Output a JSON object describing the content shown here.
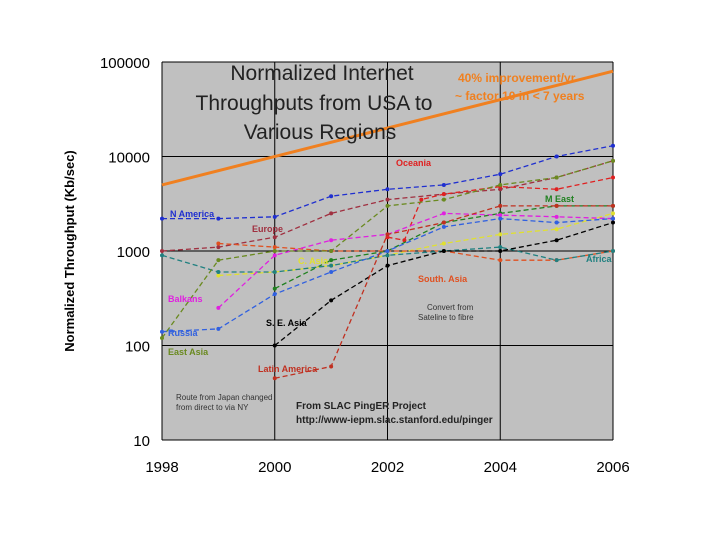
{
  "chart_data": {
    "type": "line",
    "title": [
      "Normalized Internet",
      "Throughputs from USA to",
      "Various Regions"
    ],
    "ylabel": "Normalized Throughput (Kb/sec)",
    "xlabel": "",
    "x_ticks": [
      "1998",
      "2000",
      "2002",
      "2004",
      "2006"
    ],
    "y_ticks": [
      "10",
      "100",
      "1000",
      "10000",
      "100000"
    ],
    "xlim": [
      1998,
      2006
    ],
    "ylim": [
      10,
      100000
    ],
    "y_scale": "log",
    "grid": "horizontal",
    "plot_background": "#c0c0c0",
    "series": [
      {
        "name": "N America",
        "color": "#1f2fd0",
        "x": [
          1998,
          1999,
          2000,
          2001,
          2002,
          2003,
          2004,
          2005,
          2006
        ],
        "y": [
          2200,
          2200,
          2300,
          3800,
          4500,
          5000,
          6500,
          10000,
          13000
        ]
      },
      {
        "name": "Europe",
        "color": "#a03040",
        "x": [
          1998,
          1999,
          2000,
          2001,
          2002,
          2003,
          2004,
          2005,
          2006
        ],
        "y": [
          1000,
          1100,
          1400,
          2500,
          3500,
          4000,
          4500,
          6000,
          9000
        ]
      },
      {
        "name": "Oceania",
        "color": "#e02020",
        "x": [
          2002,
          2002.3,
          2002.6,
          2003,
          2004,
          2005,
          2006
        ],
        "y": [
          1400,
          1300,
          3500,
          4000,
          4800,
          4500,
          6000
        ]
      },
      {
        "name": "M East",
        "color": "#208020",
        "x": [
          2000,
          2001,
          2002,
          2003,
          2004,
          2005,
          2006
        ],
        "y": [
          400,
          800,
          1000,
          2000,
          2500,
          3000,
          3000
        ]
      },
      {
        "name": "C. Asia",
        "color": "#e0e030",
        "x": [
          1999,
          2000,
          2001,
          2002,
          2003,
          2004,
          2005,
          2006
        ],
        "y": [
          550,
          600,
          700,
          900,
          1200,
          1500,
          1700,
          2500
        ]
      },
      {
        "name": "South. Asia",
        "color": "#e05020",
        "x": [
          1999,
          2000,
          2001,
          2002,
          2003,
          2004,
          2005,
          2006
        ],
        "y": [
          1200,
          1100,
          1000,
          1000,
          1000,
          800,
          800,
          1000
        ]
      },
      {
        "name": "Africa",
        "color": "#208080",
        "x": [
          1998,
          1999,
          2000,
          2001,
          2002,
          2003,
          2004,
          2005,
          2006
        ],
        "y": [
          900,
          600,
          600,
          700,
          900,
          1000,
          1100,
          800,
          1000
        ]
      },
      {
        "name": "Balkans",
        "color": "#e020e0",
        "x": [
          1999,
          2000,
          2001,
          2002,
          2003,
          2004,
          2005,
          2006
        ],
        "y": [
          250,
          900,
          1300,
          1500,
          2500,
          2400,
          2300,
          2200
        ]
      },
      {
        "name": "Russia",
        "color": "#3060e0",
        "x": [
          1998,
          1999,
          2000,
          2001,
          2002,
          2003,
          2004,
          2005,
          2006
        ],
        "y": [
          140,
          150,
          350,
          600,
          1000,
          1800,
          2200,
          2000,
          2200
        ]
      },
      {
        "name": "East Asia",
        "color": "#6a8a20",
        "x": [
          1998,
          1999,
          2000,
          2001,
          2002,
          2003,
          2004,
          2005,
          2006
        ],
        "y": [
          120,
          800,
          1000,
          1000,
          3000,
          3500,
          5000,
          6000,
          9000
        ]
      },
      {
        "name": "S. E. Asia",
        "color": "#000000",
        "x": [
          2000,
          2001,
          2002,
          2003,
          2004,
          2005,
          2006
        ],
        "y": [
          100,
          300,
          700,
          1000,
          1000,
          1300,
          2000
        ]
      },
      {
        "name": "Latin America",
        "color": "#c03020",
        "x": [
          2000,
          2001,
          2002,
          2003,
          2004,
          2005,
          2006
        ],
        "y": [
          45,
          60,
          1500,
          2000,
          3000,
          3000,
          3000
        ]
      }
    ],
    "trend_line": {
      "name": "40% improvement/yr",
      "color": "#f08020",
      "x": [
        1998,
        2006
      ],
      "y": [
        5000,
        80000
      ]
    },
    "annotations": [
      {
        "text": "40% improvement/yr",
        "color": "#f08020"
      },
      {
        "text": "~ factor 10 in < 7 years",
        "color": "#f08020"
      },
      {
        "text": "Convert from",
        "color": "#333333"
      },
      {
        "text": "Sateline to fibre",
        "color": "#333333"
      },
      {
        "text": "Route from Japan changed",
        "color": "#333333"
      },
      {
        "text": "from direct to via NY",
        "color": "#333333"
      },
      {
        "text": "From SLAC PingER Project",
        "color": "#222222"
      },
      {
        "text": "http://www-iepm.slac.stanford.edu/pinger",
        "color": "#222222"
      }
    ]
  }
}
